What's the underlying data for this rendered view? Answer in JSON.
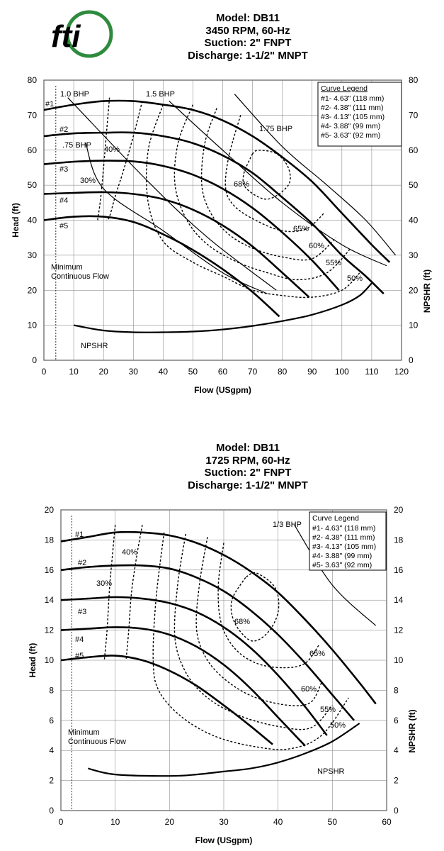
{
  "logo": {
    "text": "fti",
    "colors": {
      "globe": "#2e8b3e",
      "letters": "#1c4e9c"
    }
  },
  "colors": {
    "curve": "#000000",
    "grid": "#777777",
    "background": "#ffffff"
  },
  "chart_data": [
    {
      "type": "line",
      "title": [
        "Model: DB11",
        "3450 RPM, 60-Hz",
        "Suction: 2\" FNPT",
        "Discharge: 1-1/2\" MNPT"
      ],
      "xlabel": "Flow (USgpm)",
      "ylabel": "Head (ft)",
      "y2label": "NPSHR (ft)",
      "xlim": [
        0,
        120
      ],
      "ylim": [
        0,
        80
      ],
      "xticks": [
        0,
        10,
        20,
        30,
        40,
        50,
        60,
        70,
        80,
        90,
        100,
        110,
        120
      ],
      "yticks": [
        0,
        10,
        20,
        30,
        40,
        50,
        60,
        70,
        80
      ],
      "grid": true,
      "legend": {
        "placement": "top-right",
        "title": "Curve Legend",
        "entries": [
          "#1- 4.63\" (118 mm)",
          "#2- 4.38\" (111 mm)",
          "#3- 4.13\" (105 mm)",
          "#4- 3.88\" (99 mm)",
          "#5- 3.63\" (92 mm)"
        ]
      },
      "series": [
        {
          "name": "#1",
          "x": [
            0,
            10,
            20,
            30,
            40,
            50,
            60,
            70,
            80,
            90,
            100,
            110,
            116
          ],
          "y": [
            71.5,
            73,
            74,
            74,
            73,
            71.5,
            68.5,
            64,
            58,
            51,
            42,
            33,
            28
          ]
        },
        {
          "name": "#2",
          "x": [
            0,
            10,
            20,
            30,
            40,
            50,
            60,
            70,
            80,
            90,
            100,
            108,
            114
          ],
          "y": [
            64,
            64.8,
            65,
            65,
            64,
            62,
            58.5,
            53.5,
            46.5,
            39,
            30,
            24,
            19
          ]
        },
        {
          "name": "#3",
          "x": [
            0,
            10,
            20,
            30,
            40,
            50,
            60,
            70,
            80,
            90,
            99
          ],
          "y": [
            56,
            56.7,
            57,
            56.8,
            55.5,
            53,
            49,
            43.5,
            36.5,
            28.5,
            20
          ]
        },
        {
          "name": "#4",
          "x": [
            0,
            10,
            20,
            30,
            40,
            50,
            60,
            70,
            80,
            89
          ],
          "y": [
            47.5,
            47.8,
            48,
            47.5,
            46,
            43,
            38.5,
            32.5,
            25,
            18
          ]
        },
        {
          "name": "#5",
          "x": [
            0,
            10,
            20,
            30,
            40,
            50,
            60,
            70,
            79
          ],
          "y": [
            40,
            41,
            41,
            39.5,
            36,
            31.5,
            26,
            19.5,
            12.5
          ]
        },
        {
          "name": "NPSHR",
          "x": [
            10,
            20,
            30,
            40,
            50,
            60,
            70,
            80,
            90,
            100,
            106,
            110
          ],
          "y": [
            10,
            8.5,
            8,
            8,
            8.2,
            8.8,
            9.8,
            11.2,
            13,
            15.8,
            18.5,
            22
          ]
        }
      ],
      "bhp_lines": [
        {
          "label": "1.0 BHP",
          "x": [
            8,
            35,
            55,
            78
          ],
          "y": [
            75,
            51,
            35,
            20
          ]
        },
        {
          "label": "1.5 BHP",
          "x": [
            42,
            60,
            80,
            100,
            115
          ],
          "y": [
            74,
            60,
            45,
            33,
            27
          ]
        },
        {
          "label": ".75 BHP",
          "x": [
            14,
            20,
            40,
            60,
            75
          ],
          "y": [
            62,
            49,
            37,
            25,
            19
          ]
        },
        {
          "label": "1.75 BHP",
          "x": [
            64,
            80,
            95,
            108,
            118
          ],
          "y": [
            76,
            61,
            50,
            40,
            30
          ]
        }
      ],
      "efficiency_contours": [
        {
          "label": "30%",
          "x": [
            22,
            21,
            20,
            19,
            18
          ],
          "y": [
            75,
            65,
            55,
            46,
            40
          ]
        },
        {
          "label": "40%",
          "x": [
            33,
            30,
            27,
            24,
            22,
            21
          ],
          "y": [
            74,
            64,
            55,
            47,
            41,
            40
          ]
        },
        {
          "label": "50%",
          "x": [
            40,
            35,
            35,
            40,
            50,
            60,
            70,
            80,
            90,
            100,
            106
          ],
          "y": [
            73,
            60,
            45,
            34,
            28,
            24,
            20,
            18.5,
            18,
            20,
            25
          ]
        },
        {
          "label": "55%",
          "x": [
            50,
            45,
            44,
            48,
            55,
            65,
            75,
            85,
            95,
            103
          ],
          "y": [
            73,
            62,
            50,
            40,
            33,
            28,
            25,
            23,
            25,
            32
          ]
        },
        {
          "label": "60%",
          "x": [
            58,
            54,
            53,
            56,
            62,
            70,
            80,
            90,
            98
          ],
          "y": [
            72,
            62,
            50,
            42,
            36,
            32,
            29.5,
            29,
            35
          ]
        },
        {
          "label": "65%",
          "x": [
            66,
            62,
            61,
            64,
            71,
            80,
            88,
            94
          ],
          "y": [
            70,
            58,
            49,
            44,
            40,
            37,
            37.5,
            42
          ]
        },
        {
          "label": "68%",
          "x": [
            70,
            67,
            68,
            75,
            82,
            82,
            78,
            72,
            70
          ],
          "y": [
            59,
            53,
            49,
            46,
            50,
            55,
            59,
            60,
            59
          ]
        }
      ],
      "annotations": [
        "Minimum Continuous Flow",
        "NPSHR",
        "#1",
        "#2",
        "#3",
        "#4",
        "#5",
        "30%",
        "40%",
        "50%",
        "55%",
        "60%",
        "65%",
        "68%"
      ],
      "min_flow": 4
    },
    {
      "type": "line",
      "title": [
        "Model: DB11",
        "1725 RPM, 60-Hz",
        "Suction: 2\" FNPT",
        "Discharge: 1-1/2\" MNPT"
      ],
      "xlabel": "Flow (USgpm)",
      "ylabel": "Head (ft)",
      "y2label": "NPSHR (ft)",
      "xlim": [
        0,
        60
      ],
      "ylim": [
        0,
        20
      ],
      "xticks": [
        0,
        10,
        20,
        30,
        40,
        50,
        60
      ],
      "yticks": [
        0,
        2,
        4,
        6,
        8,
        10,
        12,
        14,
        16,
        18,
        20
      ],
      "grid": true,
      "legend": {
        "placement": "top-right",
        "title": "Curve Legend",
        "entries": [
          "#1- 4.63\" (118 mm)",
          "#2- 4.38\" (111 mm)",
          "#3- 4.13\" (105 mm)",
          "#4- 3.88\" (99 mm)",
          "#5- 3.63\" (92 mm)"
        ]
      },
      "series": [
        {
          "name": "#1",
          "x": [
            0,
            5,
            10,
            15,
            20,
            25,
            30,
            35,
            40,
            45,
            50,
            55,
            58
          ],
          "y": [
            17.9,
            18.2,
            18.5,
            18.5,
            18.3,
            17.8,
            17,
            15.9,
            14.5,
            12.7,
            10.7,
            8.5,
            7.1
          ]
        },
        {
          "name": "#2",
          "x": [
            0,
            5,
            10,
            15,
            20,
            25,
            30,
            35,
            40,
            45,
            50,
            54
          ],
          "y": [
            16,
            16.2,
            16.3,
            16.3,
            16.1,
            15.5,
            14.6,
            13.3,
            11.7,
            9.8,
            7.7,
            6
          ]
        },
        {
          "name": "#3",
          "x": [
            0,
            5,
            10,
            15,
            20,
            25,
            30,
            35,
            40,
            45,
            49
          ],
          "y": [
            14,
            14.1,
            14.2,
            14.1,
            13.8,
            13.2,
            12.2,
            10.8,
            9,
            6.9,
            5
          ]
        },
        {
          "name": "#4",
          "x": [
            0,
            5,
            10,
            15,
            20,
            25,
            30,
            35,
            40,
            45
          ],
          "y": [
            12,
            12.1,
            12.2,
            12.1,
            11.7,
            10.9,
            9.7,
            8.1,
            6.2,
            4.3
          ]
        },
        {
          "name": "#5",
          "x": [
            0,
            5,
            10,
            15,
            20,
            25,
            30,
            35,
            39
          ],
          "y": [
            10,
            10.2,
            10.3,
            10,
            9.3,
            8.3,
            7,
            5.6,
            4.4
          ]
        },
        {
          "name": "NPSHR",
          "x": [
            5,
            10,
            20,
            25,
            30,
            35,
            40,
            45,
            50,
            55
          ],
          "y": [
            2.8,
            2.4,
            2.3,
            2.4,
            2.6,
            2.8,
            3.2,
            3.8,
            4.6,
            5.8
          ]
        }
      ],
      "bhp_lines": [
        {
          "label": "1/3 BHP",
          "x": [
            43,
            50,
            58
          ],
          "y": [
            19,
            15,
            12.3
          ]
        }
      ],
      "efficiency_contours": [
        {
          "label": "30%",
          "x": [
            10,
            9.5,
            9,
            8.5,
            8
          ],
          "y": [
            19,
            17,
            15,
            12,
            10
          ]
        },
        {
          "label": "40%",
          "x": [
            15,
            14,
            13,
            12.5,
            12
          ],
          "y": [
            19,
            17,
            14.5,
            12,
            10
          ]
        },
        {
          "label": "50%",
          "x": [
            19,
            17.5,
            17,
            18,
            22,
            28,
            35,
            42,
            48,
            53
          ],
          "y": [
            18.5,
            14,
            10,
            8,
            6.3,
            5,
            4.3,
            4.1,
            5,
            7.5
          ]
        },
        {
          "label": "55%",
          "x": [
            23,
            21.5,
            21,
            23,
            27,
            33,
            40,
            46,
            50
          ],
          "y": [
            18.4,
            15,
            11.5,
            9.2,
            7.5,
            6.3,
            5.6,
            5.5,
            7
          ]
        },
        {
          "label": "60%",
          "x": [
            27,
            25.5,
            25,
            27,
            31,
            36,
            42,
            46,
            48
          ],
          "y": [
            18.2,
            15,
            12,
            10,
            8.5,
            7.5,
            7,
            7.2,
            8.5
          ]
        },
        {
          "label": "65%",
          "x": [
            30,
            29,
            29.5,
            32,
            36,
            41,
            45,
            47.5
          ],
          "y": [
            17.8,
            15,
            12.5,
            10.8,
            9.8,
            9.5,
            9.8,
            11
          ]
        },
        {
          "label": "68%",
          "x": [
            34,
            31.5,
            32,
            35,
            38,
            40,
            39.5,
            36,
            34
          ],
          "y": [
            15.5,
            14,
            12.5,
            11.3,
            11.8,
            13.2,
            14.8,
            15.8,
            15.5
          ]
        }
      ],
      "annotations": [
        "Minimum Continuous Flow",
        "NPSHR",
        "#1",
        "#2",
        "#3",
        "#4",
        "#5",
        "30%",
        "40%",
        "50%",
        "55%",
        "60%",
        "65%",
        "68%"
      ],
      "min_flow": 2
    }
  ]
}
